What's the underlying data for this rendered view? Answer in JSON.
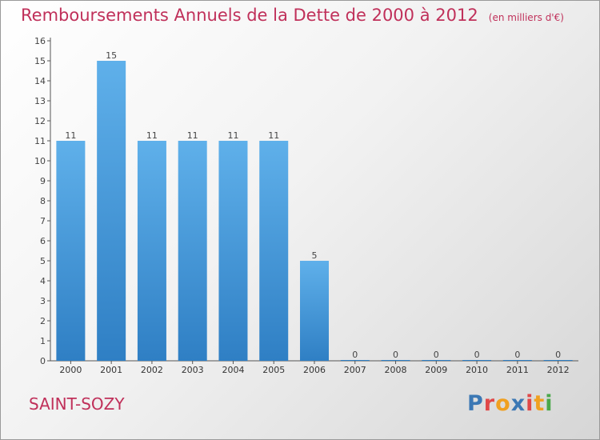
{
  "header": {
    "title": "Remboursements Annuels de la Dette de 2000 à 2012",
    "unit": "(en milliers d'€)"
  },
  "footer": {
    "commune": "SAINT-SOZY",
    "logo_text": "Proxiti",
    "logo_colors": [
      "#3c78b4",
      "#e04848",
      "#f0a020",
      "#3c78b4",
      "#e04848",
      "#f0a020",
      "#4aa84a"
    ]
  },
  "colors": {
    "bar": "#3a8fd8",
    "bar_light": "#5fb0ea",
    "accent": "#c0305a",
    "axis": "#555555"
  },
  "chart_data": {
    "type": "bar",
    "categories": [
      "2000",
      "2001",
      "2002",
      "2003",
      "2004",
      "2005",
      "2006",
      "2007",
      "2008",
      "2009",
      "2010",
      "2011",
      "2012"
    ],
    "values": [
      11,
      15,
      11,
      11,
      11,
      11,
      5,
      0,
      0,
      0,
      0,
      0,
      0
    ],
    "ylim": [
      0,
      16
    ],
    "yticks": [
      0,
      1,
      2,
      3,
      4,
      5,
      6,
      7,
      8,
      9,
      10,
      11,
      12,
      13,
      14,
      15,
      16
    ],
    "grid": false,
    "xlabel": "",
    "ylabel": ""
  }
}
